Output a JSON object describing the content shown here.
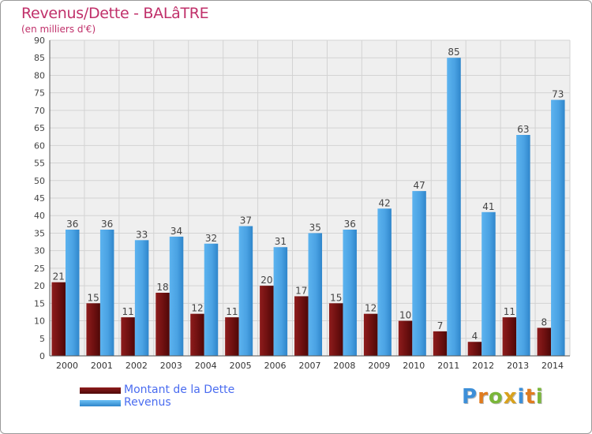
{
  "title": "Revenus/Dette - BALâTRE",
  "subtitle": "(en milliers d'€)",
  "colors": {
    "debt": "#7a1414",
    "revenue": "#4ea6e6",
    "text": "#c0306a",
    "legend_text": "#4a6cf0"
  },
  "logo": {
    "text": "Proxiti",
    "letters": [
      {
        "ch": "P",
        "color": "#3d8fd8"
      },
      {
        "ch": "r",
        "color": "#e07b1e"
      },
      {
        "ch": "o",
        "color": "#7ab63a"
      },
      {
        "ch": "x",
        "color": "#d8a21e"
      },
      {
        "ch": "i",
        "color": "#3d8fd8"
      },
      {
        "ch": "t",
        "color": "#e07b1e"
      },
      {
        "ch": "i",
        "color": "#7ab63a"
      }
    ]
  },
  "legend": [
    {
      "label": "Montant de la Dette",
      "color": "#7a1414"
    },
    {
      "label": "Revenus",
      "color": "#4ea6e6"
    }
  ],
  "chart_data": {
    "type": "bar",
    "title": "Revenus/Dette - BALâTRE",
    "subtitle": "(en milliers d'€)",
    "categories": [
      "2000",
      "2001",
      "2002",
      "2003",
      "2004",
      "2005",
      "2006",
      "2007",
      "2008",
      "2009",
      "2010",
      "2011",
      "2012",
      "2013",
      "2014"
    ],
    "series": [
      {
        "name": "Montant de la Dette",
        "values": [
          21,
          15,
          11,
          18,
          12,
          11,
          20,
          17,
          15,
          12,
          10,
          7,
          4,
          11,
          8
        ]
      },
      {
        "name": "Revenus",
        "values": [
          36,
          36,
          33,
          34,
          32,
          37,
          31,
          35,
          36,
          42,
          47,
          85,
          41,
          63,
          73
        ]
      }
    ],
    "ylim": [
      0,
      90
    ],
    "yticks": [
      0,
      5,
      10,
      15,
      20,
      25,
      30,
      35,
      40,
      45,
      50,
      55,
      60,
      65,
      70,
      75,
      80,
      85,
      90
    ],
    "grid": true,
    "legend_position": "bottom-left"
  }
}
